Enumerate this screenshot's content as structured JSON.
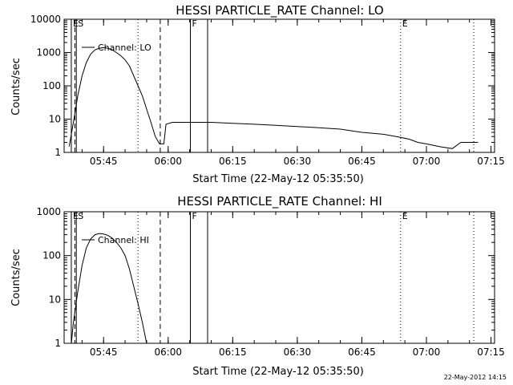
{
  "timestamp": "22-May-2012 14:15",
  "chart_data": [
    {
      "type": "line",
      "title": "HESSI PARTICLE_RATE Channel: LO",
      "xlabel": "Start Time (22-May-12 05:35:50)",
      "ylabel": "Counts/sec",
      "yscale": "log",
      "ylim": [
        1,
        10000
      ],
      "xlim": [
        "05:35:50",
        "07:15:50"
      ],
      "x_ticks": [
        "05:45",
        "06:00",
        "06:15",
        "06:30",
        "06:45",
        "07:00",
        "07:15"
      ],
      "y_ticks": [
        "1",
        "10",
        "100",
        "1000",
        "10000"
      ],
      "legend": {
        "label": "Channel: LO",
        "placement": "top-left"
      },
      "series": [
        {
          "name": "Channel: LO",
          "points": [
            [
              "05:37:00",
              1.5
            ],
            [
              "05:38:00",
              8
            ],
            [
              "05:39:00",
              50
            ],
            [
              "05:40:00",
              200
            ],
            [
              "05:41:00",
              500
            ],
            [
              "05:42:00",
              900
            ],
            [
              "05:43:00",
              1200
            ],
            [
              "05:44:00",
              1350
            ],
            [
              "05:45:00",
              1400
            ],
            [
              "05:46:00",
              1350
            ],
            [
              "05:47:00",
              1200
            ],
            [
              "05:48:00",
              1000
            ],
            [
              "05:49:00",
              800
            ],
            [
              "05:50:00",
              600
            ],
            [
              "05:51:00",
              400
            ],
            [
              "05:52:00",
              200
            ],
            [
              "05:53:00",
              100
            ],
            [
              "05:54:00",
              50
            ],
            [
              "05:55:00",
              20
            ],
            [
              "05:56:00",
              8
            ],
            [
              "05:57:00",
              3
            ],
            [
              "05:58:00",
              1.8
            ],
            [
              "05:59:00",
              1.8
            ],
            [
              "05:59:30",
              7
            ],
            [
              "06:01:00",
              8
            ],
            [
              "06:05:00",
              8
            ],
            [
              "06:10:00",
              8
            ],
            [
              "06:15:00",
              7.5
            ],
            [
              "06:20:00",
              7
            ],
            [
              "06:25:00",
              6.5
            ],
            [
              "06:30:00",
              6
            ],
            [
              "06:35:00",
              5.5
            ],
            [
              "06:40:00",
              5
            ],
            [
              "06:45:00",
              4
            ],
            [
              "06:50:00",
              3.5
            ],
            [
              "06:53:00",
              3
            ],
            [
              "06:56:00",
              2.5
            ],
            [
              "06:58:00",
              2
            ],
            [
              "07:00:00",
              1.8
            ],
            [
              "07:03:00",
              1.5
            ],
            [
              "07:06:00",
              1.3
            ],
            [
              "07:08:00",
              2
            ],
            [
              "07:10:00",
              2
            ],
            [
              "07:12:00",
              2
            ]
          ]
        }
      ],
      "markers": [
        {
          "label": "E",
          "time": "05:37:30",
          "style": "solid"
        },
        {
          "label": "S",
          "time": "05:38:40",
          "style": "solid"
        },
        {
          "label": "",
          "time": "05:38:20",
          "style": "dashed"
        },
        {
          "label": "",
          "time": "05:53:00",
          "style": "dotted"
        },
        {
          "label": "",
          "time": "05:58:10",
          "style": "dashed"
        },
        {
          "label": "F",
          "time": "06:05:10",
          "style": "solid"
        },
        {
          "label": "",
          "time": "06:09:10",
          "style": "solid"
        },
        {
          "label": "E",
          "time": "06:54:00",
          "style": "dotted"
        },
        {
          "label": "",
          "time": "07:11:00",
          "style": "dotted"
        }
      ]
    },
    {
      "type": "line",
      "title": "HESSI PARTICLE_RATE Channel: HI",
      "xlabel": "Start Time (22-May-12 05:35:50)",
      "ylabel": "Counts/sec",
      "yscale": "log",
      "ylim": [
        1,
        1000
      ],
      "xlim": [
        "05:35:50",
        "07:15:50"
      ],
      "x_ticks": [
        "05:45",
        "06:00",
        "06:15",
        "06:30",
        "06:45",
        "07:00",
        "07:15"
      ],
      "y_ticks": [
        "1",
        "10",
        "100",
        "1000"
      ],
      "legend": {
        "label": "Channel: HI",
        "placement": "top-left"
      },
      "series": [
        {
          "name": "Channel: HI",
          "points": [
            [
              "05:37:30",
              1
            ],
            [
              "05:38:00",
              3
            ],
            [
              "05:39:00",
              15
            ],
            [
              "05:40:00",
              60
            ],
            [
              "05:41:00",
              150
            ],
            [
              "05:42:00",
              240
            ],
            [
              "05:43:00",
              300
            ],
            [
              "05:44:00",
              320
            ],
            [
              "05:45:00",
              310
            ],
            [
              "05:46:00",
              290
            ],
            [
              "05:47:00",
              250
            ],
            [
              "05:48:00",
              200
            ],
            [
              "05:49:00",
              150
            ],
            [
              "05:50:00",
              100
            ],
            [
              "05:51:00",
              50
            ],
            [
              "05:52:00",
              20
            ],
            [
              "05:53:00",
              8
            ],
            [
              "05:54:00",
              3
            ],
            [
              "05:55:00",
              1
            ]
          ]
        }
      ],
      "markers": [
        {
          "label": "E",
          "time": "05:37:30",
          "style": "solid"
        },
        {
          "label": "S",
          "time": "05:38:40",
          "style": "solid"
        },
        {
          "label": "",
          "time": "05:38:20",
          "style": "dashed"
        },
        {
          "label": "",
          "time": "05:53:00",
          "style": "dotted"
        },
        {
          "label": "",
          "time": "05:58:10",
          "style": "dashed"
        },
        {
          "label": "F",
          "time": "06:05:10",
          "style": "solid"
        },
        {
          "label": "",
          "time": "06:09:10",
          "style": "solid"
        },
        {
          "label": "E",
          "time": "06:54:00",
          "style": "dotted"
        },
        {
          "label": "",
          "time": "07:11:00",
          "style": "dotted"
        }
      ]
    }
  ]
}
